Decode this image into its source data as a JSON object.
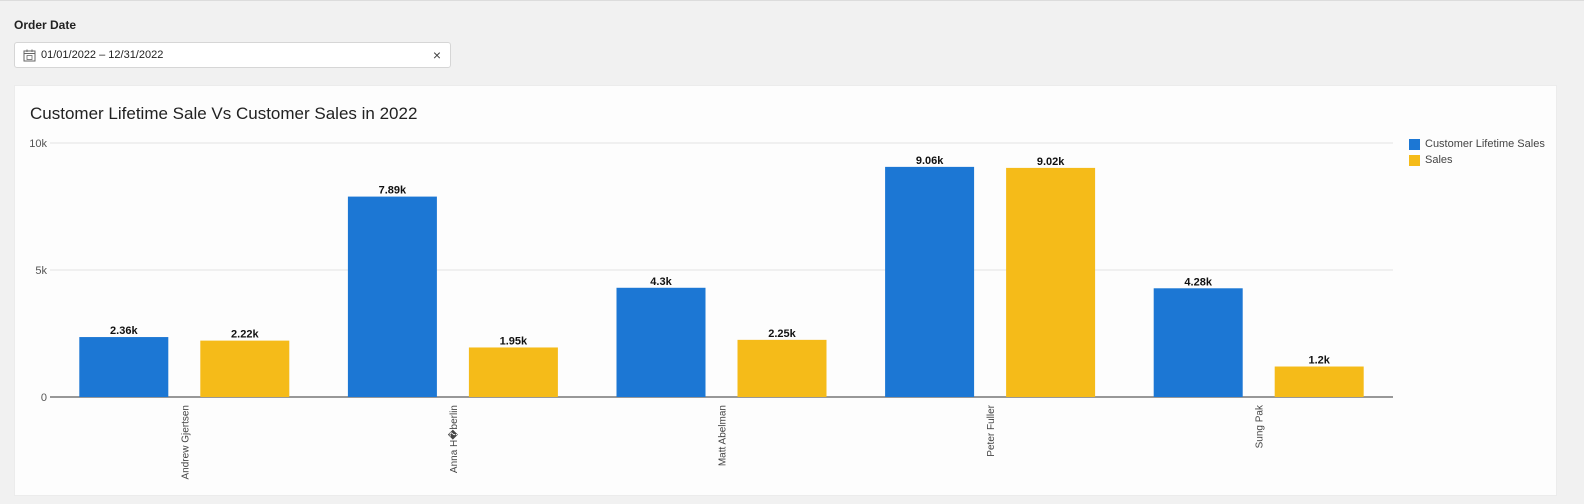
{
  "filter": {
    "label": "Order Date",
    "value": "01/01/2022 – 12/31/2022",
    "calendar_icon": "calendar-icon",
    "clear_icon_glyph": "×"
  },
  "chart_data": {
    "type": "bar",
    "title": "Customer Lifetime Sale Vs Customer Sales in 2022",
    "xlabel": "",
    "ylabel": "",
    "ylim": [
      0,
      10000
    ],
    "yticks": [
      0,
      5000,
      10000
    ],
    "ytick_labels": [
      "0",
      "5k",
      "10k"
    ],
    "grid": true,
    "legend_position": "top-right",
    "categories": [
      "Andrew Gjertsen",
      "Anna H�berlin",
      "Matt Abelman",
      "Peter Fuller",
      "Sung Pak"
    ],
    "series": [
      {
        "name": "Customer Lifetime Sales",
        "color": "#1c77d4",
        "values": [
          2360,
          7890,
          4300,
          9060,
          4280
        ],
        "labels": [
          "2.36k",
          "7.89k",
          "4.3k",
          "9.06k",
          "4.28k"
        ]
      },
      {
        "name": "Sales",
        "color": "#f5bb19",
        "values": [
          2220,
          1950,
          2250,
          9020,
          1200
        ],
        "labels": [
          "2.22k",
          "1.95k",
          "2.25k",
          "9.02k",
          "1.2k"
        ]
      }
    ]
  }
}
